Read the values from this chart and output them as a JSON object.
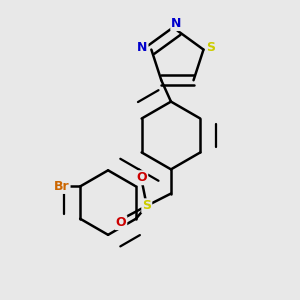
{
  "background_color": "#e8e8e8",
  "figure_size": [
    3.0,
    3.0
  ],
  "dpi": 100,
  "bond_color": "#000000",
  "bond_lw": 1.8,
  "atom_colors": {
    "S_thiadiazole": "#cccc00",
    "N": "#0000cc",
    "S_sulfonyl": "#cccc00",
    "O": "#cc0000",
    "Br": "#cc6600"
  },
  "font_size": 9
}
